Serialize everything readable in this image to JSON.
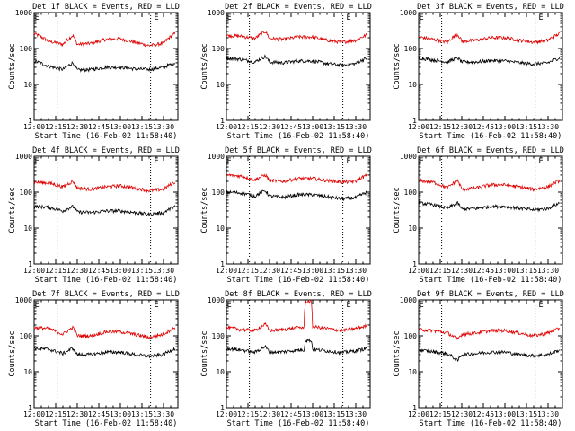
{
  "colors": {
    "events": "#000000",
    "lld": "#e00000",
    "background": "#ffffff"
  },
  "chart_data": [
    {
      "type": "line",
      "title": "Det 1f BLACK = Events, RED = LLD",
      "xlabel": "Start Time (16-Feb-02 11:58:40)",
      "ylabel": "Counts/sec",
      "x_range": [
        "12:00",
        "13:40"
      ],
      "ylim": [
        1,
        1000
      ],
      "yscale": "log",
      "x_ticks": [
        "12:00",
        "12:15",
        "12:30",
        "12:45",
        "13:00",
        "13:15",
        "13:30"
      ],
      "y_ticks": [
        "1",
        "10",
        "100",
        "1000"
      ],
      "markers": [
        {
          "label": "E",
          "time": "12:02"
        },
        {
          "label": "E",
          "time": "13:25"
        }
      ],
      "dotted_lines": [
        "12:16",
        "13:21"
      ],
      "series": [
        {
          "color": "red",
          "x": [
            "12:00",
            "12:10",
            "12:20",
            "12:27",
            "12:30",
            "12:40",
            "12:50",
            "13:00",
            "13:10",
            "13:20",
            "13:30",
            "13:38"
          ],
          "values": [
            260,
            160,
            130,
            230,
            130,
            140,
            180,
            185,
            150,
            120,
            140,
            260
          ]
        },
        {
          "color": "black",
          "x": [
            "12:00",
            "12:10",
            "12:20",
            "12:27",
            "12:30",
            "12:40",
            "12:50",
            "13:00",
            "13:10",
            "13:20",
            "13:30",
            "13:38"
          ],
          "values": [
            45,
            32,
            26,
            40,
            25,
            26,
            30,
            30,
            27,
            26,
            30,
            40
          ]
        }
      ]
    },
    {
      "type": "line",
      "title": "Det 2f BLACK = Events, RED = LLD",
      "xlabel": "Start Time (16-Feb-02 11:58:40)",
      "ylabel": "Counts/sec",
      "x_range": [
        "12:00",
        "13:40"
      ],
      "ylim": [
        1,
        1000
      ],
      "yscale": "log",
      "x_ticks": [
        "12:00",
        "12:15",
        "12:30",
        "12:45",
        "13:00",
        "13:15",
        "13:30"
      ],
      "y_ticks": [
        "1",
        "10",
        "100",
        "1000"
      ],
      "markers": [
        {
          "label": "E",
          "time": "12:02"
        },
        {
          "label": "E",
          "time": "13:25"
        }
      ],
      "dotted_lines": [
        "12:16",
        "13:21"
      ],
      "series": [
        {
          "color": "red",
          "x": [
            "12:00",
            "12:10",
            "12:20",
            "12:27",
            "12:30",
            "12:40",
            "12:50",
            "13:00",
            "13:10",
            "13:20",
            "13:30",
            "13:38"
          ],
          "values": [
            230,
            220,
            190,
            300,
            190,
            180,
            210,
            210,
            170,
            150,
            170,
            240
          ]
        },
        {
          "color": "black",
          "x": [
            "12:00",
            "12:10",
            "12:20",
            "12:27",
            "12:30",
            "12:40",
            "12:50",
            "13:00",
            "13:10",
            "13:20",
            "13:30",
            "13:38"
          ],
          "values": [
            55,
            50,
            42,
            60,
            42,
            40,
            45,
            45,
            38,
            34,
            38,
            55
          ]
        }
      ]
    },
    {
      "type": "line",
      "title": "Det 3f BLACK = Events, RED = LLD",
      "xlabel": "Start Time (16-Feb-02 11:58:40)",
      "ylabel": "Counts/sec",
      "x_range": [
        "12:00",
        "13:40"
      ],
      "ylim": [
        1,
        1000
      ],
      "yscale": "log",
      "x_ticks": [
        "12:00",
        "12:15",
        "12:30",
        "12:45",
        "13:00",
        "13:15",
        "13:30"
      ],
      "y_ticks": [
        "1",
        "10",
        "100",
        "1000"
      ],
      "markers": [
        {
          "label": "E",
          "time": "12:02"
        },
        {
          "label": "E",
          "time": "13:25"
        }
      ],
      "dotted_lines": [
        "12:16",
        "13:21"
      ],
      "series": [
        {
          "color": "red",
          "x": [
            "12:00",
            "12:10",
            "12:20",
            "12:27",
            "12:30",
            "12:40",
            "12:50",
            "13:00",
            "13:10",
            "13:20",
            "13:30",
            "13:38"
          ],
          "values": [
            210,
            180,
            150,
            250,
            160,
            170,
            200,
            200,
            170,
            150,
            170,
            260
          ]
        },
        {
          "color": "black",
          "x": [
            "12:00",
            "12:10",
            "12:20",
            "12:27",
            "12:30",
            "12:40",
            "12:50",
            "13:00",
            "13:10",
            "13:20",
            "13:30",
            "13:38"
          ],
          "values": [
            55,
            48,
            42,
            55,
            42,
            42,
            46,
            45,
            40,
            37,
            40,
            55
          ]
        }
      ]
    },
    {
      "type": "line",
      "title": "Det 4f BLACK = Events, RED = LLD",
      "xlabel": "Start Time (16-Feb-02 11:58:40)",
      "ylabel": "Counts/sec",
      "x_range": [
        "12:00",
        "13:40"
      ],
      "ylim": [
        1,
        1000
      ],
      "yscale": "log",
      "x_ticks": [
        "12:00",
        "12:15",
        "12:30",
        "12:45",
        "13:00",
        "13:15",
        "13:30"
      ],
      "y_ticks": [
        "1",
        "10",
        "100",
        "1000"
      ],
      "markers": [
        {
          "label": "E",
          "time": "12:02"
        },
        {
          "label": "E",
          "time": "13:25"
        }
      ],
      "dotted_lines": [
        "12:16",
        "13:21"
      ],
      "series": [
        {
          "color": "red",
          "x": [
            "12:00",
            "12:10",
            "12:20",
            "12:27",
            "12:30",
            "12:40",
            "12:50",
            "13:00",
            "13:10",
            "13:20",
            "13:30",
            "13:38"
          ],
          "values": [
            190,
            180,
            140,
            200,
            130,
            120,
            140,
            150,
            130,
            110,
            120,
            190
          ]
        },
        {
          "color": "black",
          "x": [
            "12:00",
            "12:10",
            "12:20",
            "12:27",
            "12:30",
            "12:40",
            "12:50",
            "13:00",
            "13:10",
            "13:20",
            "13:30",
            "13:38"
          ],
          "values": [
            40,
            38,
            30,
            40,
            28,
            27,
            30,
            30,
            27,
            24,
            27,
            40
          ]
        }
      ]
    },
    {
      "type": "line",
      "title": "Det 5f BLACK = Events, RED = LLD",
      "xlabel": "Start Time (16-Feb-02 11:58:40)",
      "ylabel": "Counts/sec",
      "x_range": [
        "12:00",
        "13:40"
      ],
      "ylim": [
        1,
        1000
      ],
      "yscale": "log",
      "x_ticks": [
        "12:00",
        "12:15",
        "12:30",
        "12:45",
        "13:00",
        "13:15",
        "13:30"
      ],
      "y_ticks": [
        "1",
        "10",
        "100",
        "1000"
      ],
      "markers": [
        {
          "label": "E",
          "time": "12:02"
        },
        {
          "label": "E",
          "time": "13:25"
        }
      ],
      "dotted_lines": [
        "12:16",
        "13:21"
      ],
      "series": [
        {
          "color": "red",
          "x": [
            "12:00",
            "12:10",
            "12:20",
            "12:27",
            "12:30",
            "12:40",
            "12:50",
            "13:00",
            "13:10",
            "13:20",
            "13:30",
            "13:38"
          ],
          "values": [
            300,
            280,
            220,
            300,
            210,
            200,
            240,
            240,
            210,
            190,
            200,
            300
          ]
        },
        {
          "color": "black",
          "x": [
            "12:00",
            "12:10",
            "12:20",
            "12:27",
            "12:30",
            "12:40",
            "12:50",
            "13:00",
            "13:10",
            "13:20",
            "13:30",
            "13:38"
          ],
          "values": [
            100,
            95,
            78,
            110,
            78,
            72,
            85,
            85,
            75,
            65,
            70,
            100
          ]
        }
      ]
    },
    {
      "type": "line",
      "title": "Det 6f BLACK = Events, RED = LLD",
      "xlabel": "Start Time (16-Feb-02 11:58:40)",
      "ylabel": "Counts/sec",
      "x_range": [
        "12:00",
        "13:40"
      ],
      "ylim": [
        1,
        1000
      ],
      "yscale": "log",
      "x_ticks": [
        "12:00",
        "12:15",
        "12:30",
        "12:45",
        "13:00",
        "13:15",
        "13:30"
      ],
      "y_ticks": [
        "1",
        "10",
        "100",
        "1000"
      ],
      "markers": [
        {
          "label": "E",
          "time": "12:02"
        },
        {
          "label": "E",
          "time": "13:25"
        }
      ],
      "dotted_lines": [
        "12:16",
        "13:21"
      ],
      "series": [
        {
          "color": "red",
          "x": [
            "12:00",
            "12:10",
            "12:20",
            "12:27",
            "12:30",
            "12:40",
            "12:50",
            "13:00",
            "13:10",
            "13:20",
            "13:30",
            "13:38"
          ],
          "values": [
            210,
            190,
            130,
            210,
            120,
            130,
            160,
            160,
            140,
            120,
            140,
            210
          ]
        },
        {
          "color": "black",
          "x": [
            "12:00",
            "12:10",
            "12:20",
            "12:27",
            "12:30",
            "12:40",
            "12:50",
            "13:00",
            "13:10",
            "13:20",
            "13:30",
            "13:38"
          ],
          "values": [
            50,
            45,
            35,
            50,
            34,
            35,
            40,
            40,
            36,
            32,
            35,
            50
          ]
        }
      ]
    },
    {
      "type": "line",
      "title": "Det 7f BLACK = Events, RED = LLD",
      "xlabel": "Start Time (16-Feb-02 11:58:40)",
      "ylabel": "Counts/sec",
      "x_range": [
        "12:00",
        "13:40"
      ],
      "ylim": [
        1,
        1000
      ],
      "yscale": "log",
      "x_ticks": [
        "12:00",
        "12:15",
        "12:30",
        "12:45",
        "13:00",
        "13:15",
        "13:30"
      ],
      "y_ticks": [
        "1",
        "10",
        "100",
        "1000"
      ],
      "markers": [
        {
          "label": "E",
          "time": "12:02"
        },
        {
          "label": "E",
          "time": "13:25"
        }
      ],
      "dotted_lines": [
        "12:16",
        "13:21"
      ],
      "series": [
        {
          "color": "red",
          "x": [
            "12:00",
            "12:10",
            "12:20",
            "12:27",
            "12:30",
            "12:40",
            "12:50",
            "13:00",
            "13:10",
            "13:20",
            "13:30",
            "13:38"
          ],
          "values": [
            170,
            160,
            110,
            170,
            100,
            100,
            130,
            130,
            110,
            90,
            110,
            170
          ]
        },
        {
          "color": "black",
          "x": [
            "12:00",
            "12:10",
            "12:20",
            "12:27",
            "12:30",
            "12:40",
            "12:50",
            "13:00",
            "13:10",
            "13:20",
            "13:30",
            "13:38"
          ],
          "values": [
            45,
            42,
            32,
            45,
            30,
            30,
            35,
            35,
            30,
            27,
            30,
            45
          ]
        }
      ]
    },
    {
      "type": "line",
      "title": "Det 8f BLACK = Events, RED = LLD",
      "xlabel": "Start Time (16-Feb-02 11:58:40)",
      "ylabel": "Counts/sec",
      "x_range": [
        "12:00",
        "13:40"
      ],
      "ylim": [
        1,
        1000
      ],
      "yscale": "log",
      "x_ticks": [
        "12:00",
        "12:15",
        "12:30",
        "12:45",
        "13:00",
        "13:15",
        "13:30"
      ],
      "y_ticks": [
        "1",
        "10",
        "100",
        "1000"
      ],
      "markers": [
        {
          "label": "E",
          "time": "12:02"
        },
        {
          "label": "E",
          "time": "13:25"
        }
      ],
      "dotted_lines": [
        "12:16",
        "13:21"
      ],
      "series": [
        {
          "color": "red",
          "x": [
            "12:00",
            "12:10",
            "12:20",
            "12:27",
            "12:30",
            "12:40",
            "12:50",
            "12:54",
            "12:55",
            "12:59",
            "13:00",
            "13:10",
            "13:20",
            "13:30",
            "13:38"
          ],
          "values": [
            170,
            150,
            140,
            210,
            140,
            150,
            170,
            170,
            900,
            900,
            180,
            160,
            140,
            160,
            190
          ]
        },
        {
          "color": "black",
          "x": [
            "12:00",
            "12:10",
            "12:20",
            "12:27",
            "12:30",
            "12:40",
            "12:50",
            "12:54",
            "12:55",
            "12:59",
            "13:00",
            "13:10",
            "13:20",
            "13:30",
            "13:38"
          ],
          "values": [
            45,
            40,
            35,
            50,
            35,
            36,
            40,
            40,
            75,
            75,
            42,
            38,
            34,
            38,
            45
          ]
        }
      ]
    },
    {
      "type": "line",
      "title": "Det 9f BLACK = Events, RED = LLD",
      "xlabel": "Start Time (16-Feb-02 11:58:40)",
      "ylabel": "Counts/sec",
      "x_range": [
        "12:00",
        "13:40"
      ],
      "ylim": [
        1,
        1000
      ],
      "yscale": "log",
      "x_ticks": [
        "12:00",
        "12:15",
        "12:30",
        "12:45",
        "13:00",
        "13:15",
        "13:30"
      ],
      "y_ticks": [
        "1",
        "10",
        "100",
        "1000"
      ],
      "markers": [
        {
          "label": "E",
          "time": "12:02"
        },
        {
          "label": "E",
          "time": "13:25"
        }
      ],
      "dotted_lines": [
        "12:16",
        "13:21"
      ],
      "series": [
        {
          "color": "red",
          "x": [
            "12:00",
            "12:10",
            "12:20",
            "12:27",
            "12:30",
            "12:40",
            "12:50",
            "13:00",
            "13:10",
            "13:20",
            "13:30",
            "13:38"
          ],
          "values": [
            150,
            140,
            120,
            80,
            110,
            120,
            140,
            140,
            120,
            100,
            120,
            160
          ]
        },
        {
          "color": "black",
          "x": [
            "12:00",
            "12:10",
            "12:20",
            "12:27",
            "12:30",
            "12:40",
            "12:50",
            "13:00",
            "13:10",
            "13:20",
            "13:30",
            "13:38"
          ],
          "values": [
            40,
            36,
            32,
            20,
            30,
            32,
            35,
            35,
            30,
            28,
            30,
            40
          ]
        }
      ]
    }
  ]
}
